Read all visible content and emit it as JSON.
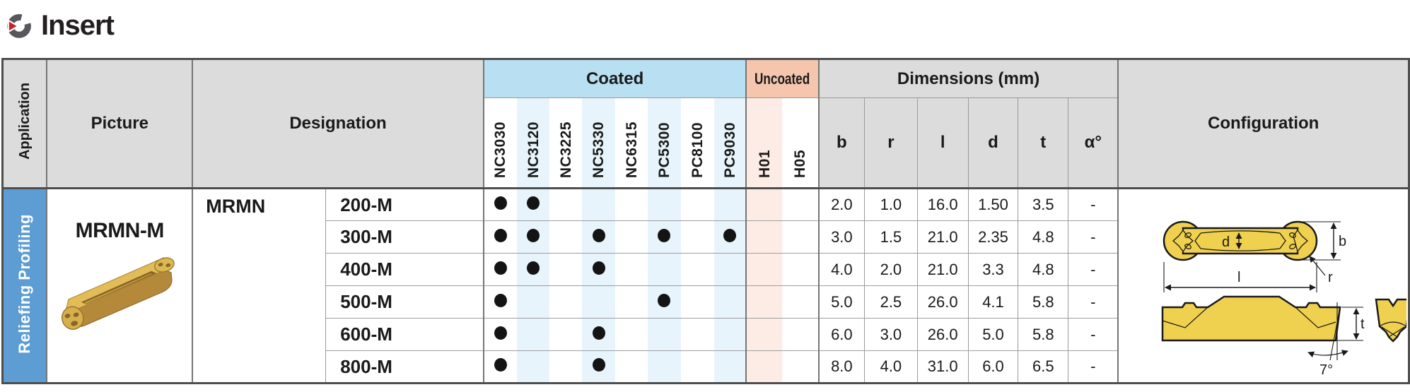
{
  "title": {
    "text": "Insert"
  },
  "colors": {
    "coated_header": "#b9e0f2",
    "coated_stripe": "#e7f4fb",
    "uncoated_header": "#f5c5ae",
    "uncoated_stripe": "#fdece5",
    "header_grey": "#dcdcdc",
    "application_blue": "#5e9dd4",
    "logo_grey": "#58585c",
    "logo_red": "#c62127",
    "insert_gold": "#e2bc58",
    "drawing_yellow": "#f0d04f"
  },
  "table": {
    "headers": {
      "application": "Application",
      "picture": "Picture",
      "designation": "Designation",
      "coated": "Coated",
      "uncoated": "Uncoated",
      "dimensions": "Dimensions (mm)",
      "configuration": "Configuration",
      "grades_coated": [
        "NC3030",
        "NC3120",
        "NC3225",
        "NC5330",
        "NC6315",
        "PC5300",
        "PC8100",
        "PC9030"
      ],
      "grades_uncoated": [
        "H01",
        "H05"
      ],
      "dims": [
        "b",
        "r",
        "l",
        "d",
        "t",
        "α°"
      ]
    },
    "application_label": "Reliefing Profiling",
    "picture_label": "MRMN-M",
    "designation_name": "MRMN",
    "rows": [
      {
        "size": "200-M",
        "grades": [
          1,
          1,
          0,
          0,
          0,
          0,
          0,
          0,
          0,
          0
        ],
        "dims": [
          "2.0",
          "1.0",
          "16.0",
          "1.50",
          "3.5",
          "-"
        ]
      },
      {
        "size": "300-M",
        "grades": [
          1,
          1,
          0,
          1,
          0,
          1,
          0,
          1,
          0,
          0
        ],
        "dims": [
          "3.0",
          "1.5",
          "21.0",
          "2.35",
          "4.8",
          "-"
        ]
      },
      {
        "size": "400-M",
        "grades": [
          1,
          1,
          0,
          1,
          0,
          0,
          0,
          0,
          0,
          0
        ],
        "dims": [
          "4.0",
          "2.0",
          "21.0",
          "3.3",
          "4.8",
          "-"
        ]
      },
      {
        "size": "500-M",
        "grades": [
          1,
          0,
          0,
          0,
          0,
          1,
          0,
          0,
          0,
          0
        ],
        "dims": [
          "5.0",
          "2.5",
          "26.0",
          "4.1",
          "5.8",
          "-"
        ]
      },
      {
        "size": "600-M",
        "grades": [
          1,
          0,
          0,
          1,
          0,
          0,
          0,
          0,
          0,
          0
        ],
        "dims": [
          "6.0",
          "3.0",
          "26.0",
          "5.0",
          "5.8",
          "-"
        ]
      },
      {
        "size": "800-M",
        "grades": [
          1,
          0,
          0,
          1,
          0,
          0,
          0,
          0,
          0,
          0
        ],
        "dims": [
          "8.0",
          "4.0",
          "31.0",
          "6.0",
          "6.5",
          "-"
        ]
      }
    ],
    "config_labels": {
      "d": "d",
      "b": "b",
      "l": "l",
      "r": "r",
      "t": "t",
      "angle": "7°"
    }
  }
}
